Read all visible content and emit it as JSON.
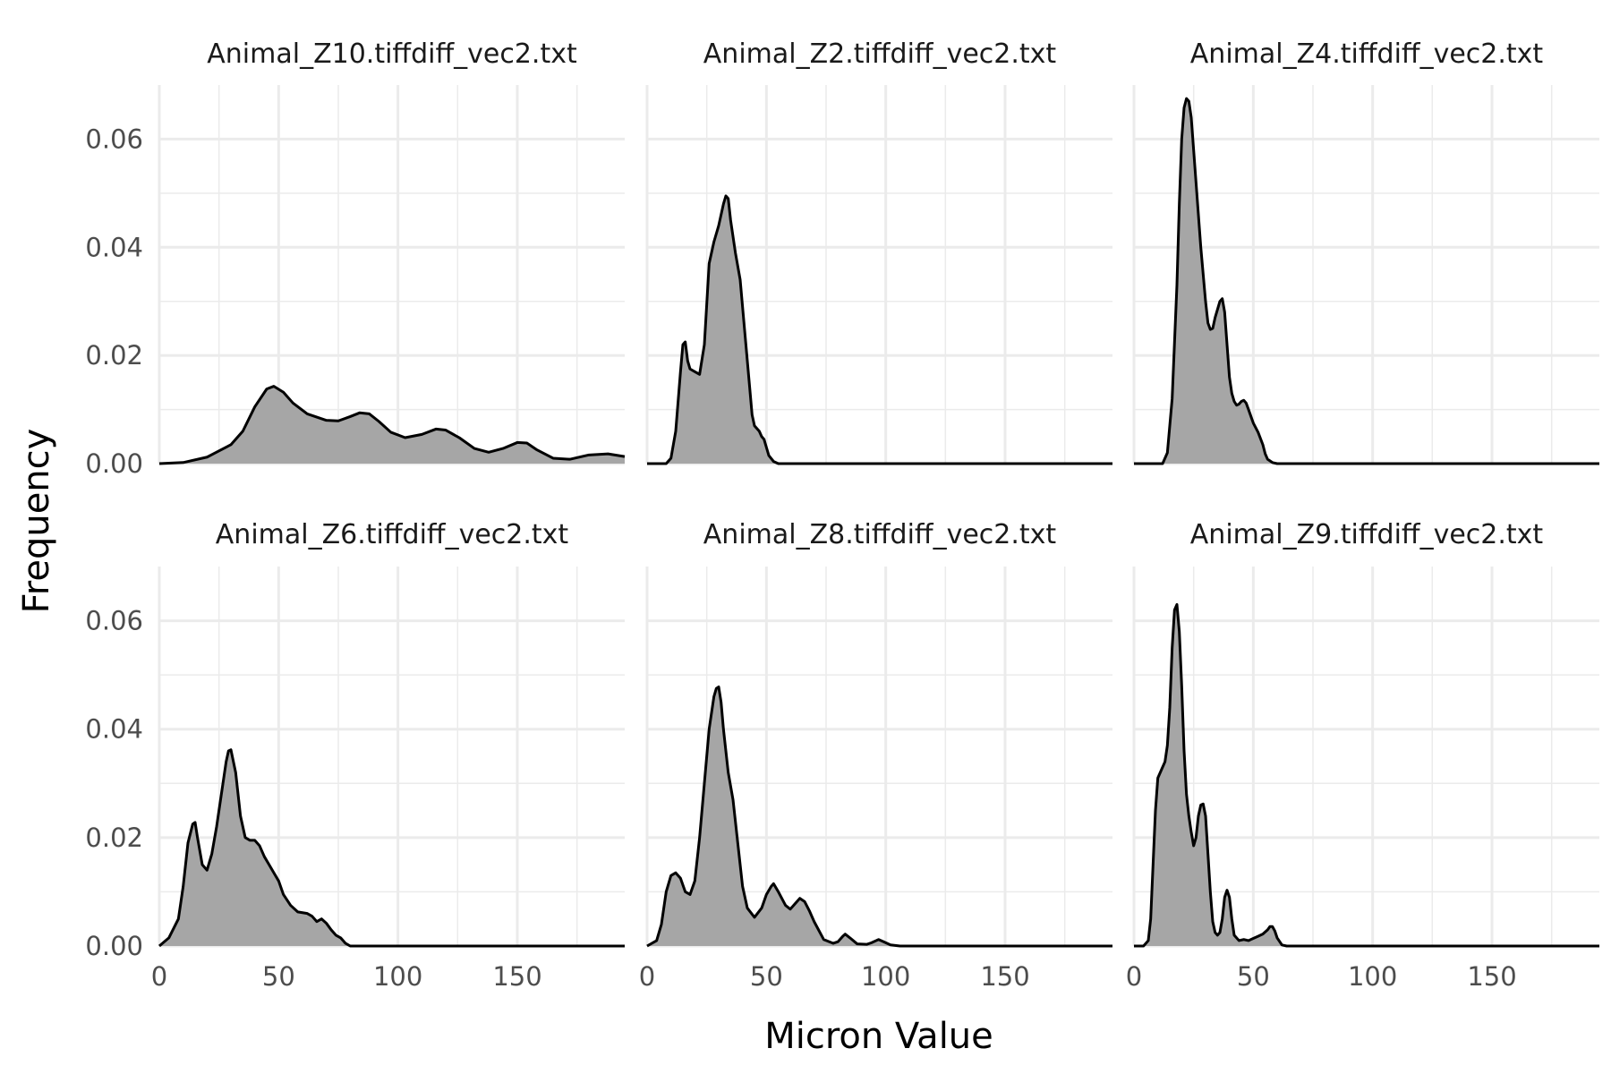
{
  "chart_data": {
    "type": "area",
    "xlabel": "Micron Value",
    "ylabel": "Frequency",
    "xlim": [
      0,
      195
    ],
    "ylim": [
      0,
      0.07
    ],
    "x_ticks": [
      "0",
      "50",
      "100",
      "150"
    ],
    "y_ticks": [
      "0.00",
      "0.02",
      "0.04",
      "0.06"
    ],
    "grid": true,
    "fill_color": "#a6a6a6",
    "line_color": "#000000",
    "grid_color": "#ebebeb",
    "facets": [
      {
        "title": "Animal_Z10.tiffdiff_vec2.txt",
        "x": [
          0,
          10,
          20,
          30,
          35,
          40,
          45,
          48,
          52,
          56,
          62,
          70,
          75,
          80,
          84,
          88,
          92,
          97,
          103,
          110,
          116,
          120,
          126,
          132,
          138,
          144,
          150,
          154,
          158,
          165,
          172,
          180,
          188,
          195
        ],
        "y": [
          0,
          0.0002,
          0.0012,
          0.0035,
          0.006,
          0.0105,
          0.0138,
          0.0143,
          0.0132,
          0.0112,
          0.0092,
          0.008,
          0.0079,
          0.0087,
          0.0094,
          0.0092,
          0.0078,
          0.0058,
          0.0048,
          0.0054,
          0.0064,
          0.0062,
          0.0047,
          0.0028,
          0.0021,
          0.0028,
          0.0039,
          0.0038,
          0.0026,
          0.001,
          0.0008,
          0.0016,
          0.0018,
          0.0013
        ]
      },
      {
        "title": "Animal_Z2.tiffdiff_vec2.txt",
        "x": [
          0,
          8,
          10,
          12,
          14,
          15,
          16,
          17,
          18,
          20,
          22,
          24,
          26,
          28,
          30,
          32,
          33,
          34,
          35,
          37,
          39,
          41,
          43,
          44,
          45,
          46,
          47,
          48,
          49,
          50,
          51,
          53,
          55,
          60,
          195
        ],
        "y": [
          0,
          0,
          0.001,
          0.006,
          0.017,
          0.022,
          0.0225,
          0.019,
          0.0175,
          0.017,
          0.0165,
          0.022,
          0.037,
          0.041,
          0.044,
          0.048,
          0.0495,
          0.049,
          0.045,
          0.039,
          0.034,
          0.024,
          0.014,
          0.009,
          0.007,
          0.0065,
          0.006,
          0.005,
          0.0045,
          0.003,
          0.0015,
          0.0004,
          0,
          0,
          0
        ]
      },
      {
        "title": "Animal_Z4.tiffdiff_vec2.txt",
        "x": [
          0,
          12,
          14,
          16,
          18,
          19,
          20,
          21,
          22,
          23,
          24,
          26,
          28,
          30,
          31,
          32,
          33,
          34,
          36,
          37,
          38,
          39,
          40,
          41,
          42,
          43,
          44,
          45,
          46,
          47,
          48,
          50,
          52,
          54,
          55,
          56,
          58,
          60,
          62,
          195
        ],
        "y": [
          0,
          0,
          0.002,
          0.012,
          0.033,
          0.048,
          0.06,
          0.0658,
          0.0675,
          0.067,
          0.064,
          0.052,
          0.04,
          0.03,
          0.026,
          0.0248,
          0.025,
          0.027,
          0.03,
          0.0305,
          0.028,
          0.022,
          0.016,
          0.013,
          0.0115,
          0.0108,
          0.011,
          0.0115,
          0.0117,
          0.0112,
          0.01,
          0.0075,
          0.0058,
          0.0035,
          0.0018,
          0.0008,
          0.0002,
          0,
          0,
          0
        ]
      },
      {
        "title": "Animal_Z6.tiffdiff_vec2.txt",
        "x": [
          0,
          4,
          8,
          10,
          12,
          14,
          15,
          16,
          18,
          20,
          22,
          24,
          26,
          28,
          29,
          30,
          32,
          34,
          36,
          38,
          40,
          42,
          44,
          46,
          48,
          50,
          52,
          55,
          58,
          62,
          64,
          66,
          68,
          70,
          72,
          74,
          76,
          78,
          80,
          82,
          195
        ],
        "y": [
          0,
          0.0015,
          0.005,
          0.011,
          0.019,
          0.0225,
          0.0228,
          0.02,
          0.015,
          0.014,
          0.017,
          0.022,
          0.028,
          0.034,
          0.036,
          0.0362,
          0.032,
          0.024,
          0.02,
          0.0195,
          0.0195,
          0.0185,
          0.0165,
          0.015,
          0.0135,
          0.012,
          0.0095,
          0.0075,
          0.0063,
          0.006,
          0.0055,
          0.0045,
          0.005,
          0.0042,
          0.003,
          0.002,
          0.0015,
          0.0005,
          0,
          0,
          0
        ]
      },
      {
        "title": "Animal_Z8.tiffdiff_vec2.txt",
        "x": [
          0,
          4,
          6,
          8,
          10,
          12,
          14,
          16,
          18,
          20,
          22,
          24,
          26,
          28,
          29,
          30,
          31,
          32,
          34,
          36,
          38,
          40,
          42,
          45,
          48,
          50,
          52,
          53,
          55,
          58,
          60,
          62,
          64,
          66,
          68,
          70,
          74,
          78,
          80,
          82,
          83,
          85,
          88,
          92,
          94,
          96,
          97,
          99,
          102,
          106,
          195
        ],
        "y": [
          0,
          0.001,
          0.004,
          0.01,
          0.013,
          0.0135,
          0.0125,
          0.01,
          0.0095,
          0.012,
          0.02,
          0.03,
          0.04,
          0.046,
          0.0475,
          0.0478,
          0.045,
          0.04,
          0.032,
          0.027,
          0.019,
          0.011,
          0.007,
          0.0053,
          0.007,
          0.0095,
          0.011,
          0.0115,
          0.01,
          0.0075,
          0.0068,
          0.0078,
          0.0088,
          0.0082,
          0.0065,
          0.0045,
          0.0012,
          0.0005,
          0.0008,
          0.0018,
          0.0022,
          0.0015,
          0.0004,
          0.0003,
          0.0006,
          0.001,
          0.0012,
          0.0008,
          0.0002,
          0,
          0
        ]
      },
      {
        "title": "Animal_Z9.tiffdiff_vec2.txt",
        "x": [
          0,
          4,
          6,
          7,
          8,
          9,
          10,
          12,
          13,
          14,
          15,
          16,
          17,
          18,
          19,
          20,
          21,
          22,
          23,
          24,
          25,
          26,
          27,
          28,
          29,
          30,
          31,
          32,
          33,
          34,
          35,
          36,
          37,
          38,
          39,
          40,
          41,
          42,
          44,
          46,
          48,
          50,
          52,
          54,
          56,
          57,
          58,
          59,
          60,
          62,
          64,
          195
        ],
        "y": [
          0,
          0,
          0.001,
          0.005,
          0.015,
          0.025,
          0.031,
          0.033,
          0.034,
          0.037,
          0.044,
          0.055,
          0.062,
          0.063,
          0.058,
          0.048,
          0.036,
          0.028,
          0.024,
          0.021,
          0.0185,
          0.02,
          0.024,
          0.026,
          0.0262,
          0.024,
          0.017,
          0.01,
          0.0045,
          0.0025,
          0.002,
          0.0025,
          0.005,
          0.009,
          0.0103,
          0.009,
          0.005,
          0.002,
          0.001,
          0.0012,
          0.001,
          0.0014,
          0.0018,
          0.0022,
          0.003,
          0.0036,
          0.0036,
          0.0028,
          0.0015,
          0.0002,
          0,
          0
        ]
      }
    ]
  }
}
